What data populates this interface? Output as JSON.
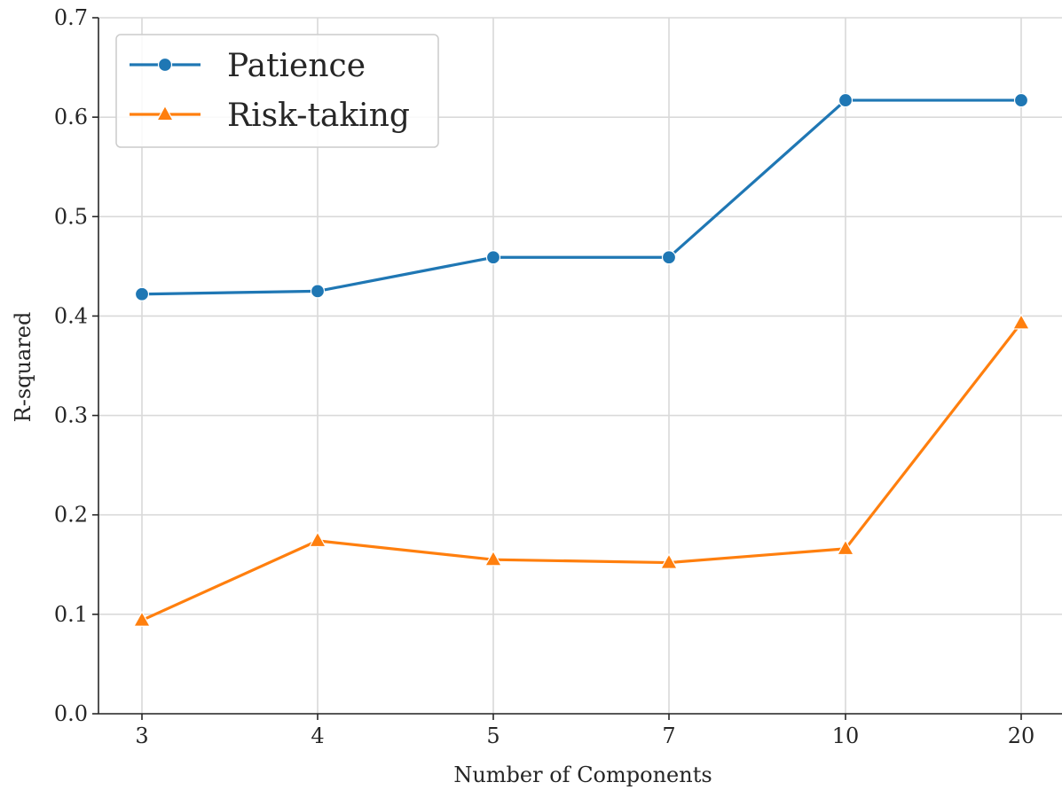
{
  "chart_data": {
    "type": "line",
    "title": "",
    "xlabel": "Number of Components",
    "ylabel": "R-squared",
    "categories": [
      "3",
      "4",
      "5",
      "7",
      "10",
      "20"
    ],
    "ylim": [
      0.0,
      0.7
    ],
    "yticks": [
      "0.0",
      "0.1",
      "0.2",
      "0.3",
      "0.4",
      "0.5",
      "0.6",
      "0.7"
    ],
    "grid": true,
    "legend_position": "top-left",
    "series": [
      {
        "name": "Patience",
        "values": [
          0.422,
          0.425,
          0.459,
          0.459,
          0.617,
          0.617
        ],
        "color": "#1f77b4",
        "marker": "circle"
      },
      {
        "name": "Risk-taking",
        "values": [
          0.094,
          0.174,
          0.155,
          0.152,
          0.166,
          0.393
        ],
        "color": "#ff7f0e",
        "marker": "triangle"
      }
    ]
  }
}
